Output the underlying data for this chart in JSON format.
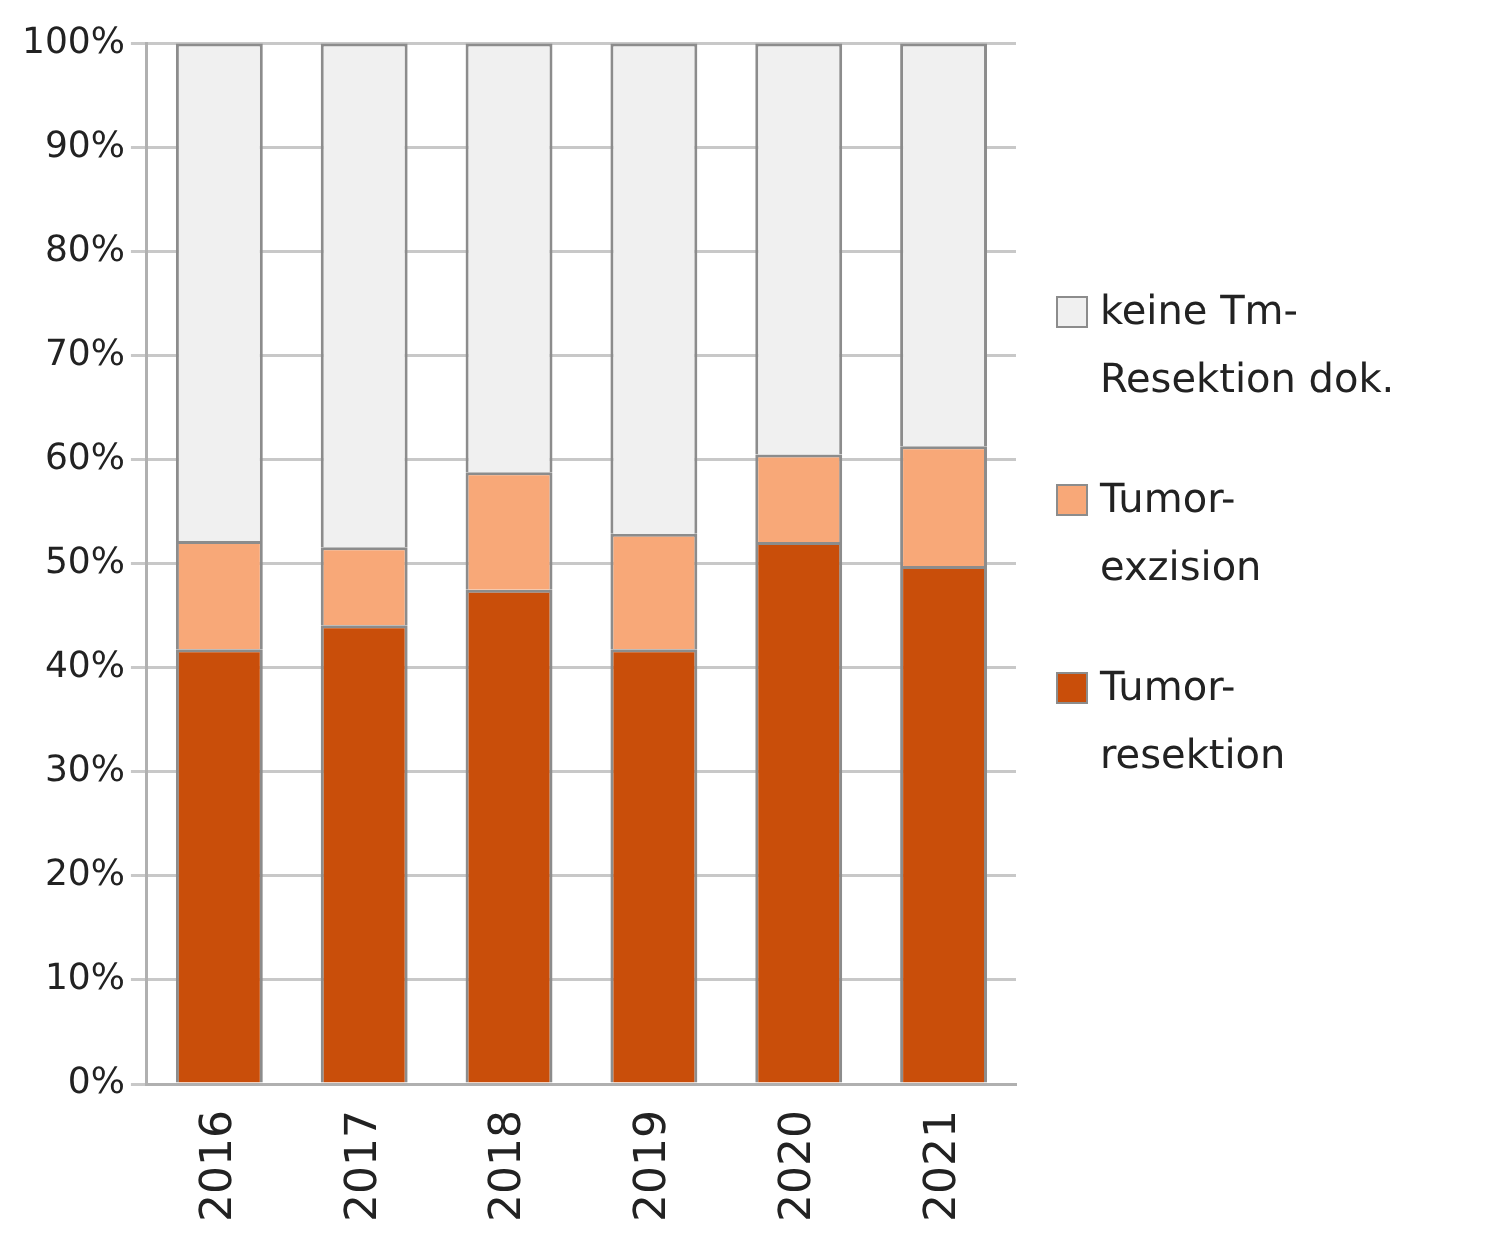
{
  "chart_data": {
    "type": "bar",
    "stacked": true,
    "categories": [
      "2016",
      "2017",
      "2018",
      "2019",
      "2020",
      "2021"
    ],
    "series": [
      {
        "name": "Tumor-resektion",
        "color": "#c94e0a",
        "values": [
          41.8,
          44.1,
          47.5,
          41.8,
          52.1,
          49.8
        ]
      },
      {
        "name": "Tumor-exzision",
        "color": "#f8a878",
        "values": [
          10.4,
          7.5,
          11.3,
          11.1,
          8.4,
          11.5
        ]
      },
      {
        "name": "keine Tm-Resektion dok.",
        "color": "#f0f0f0",
        "values": [
          47.8,
          48.4,
          41.2,
          47.1,
          39.5,
          38.7
        ]
      }
    ],
    "ylim": [
      0,
      100
    ],
    "yticks": [
      {
        "value": 0,
        "label": "0%"
      },
      {
        "value": 10,
        "label": "10%"
      },
      {
        "value": 20,
        "label": "20%"
      },
      {
        "value": 30,
        "label": "30%"
      },
      {
        "value": 40,
        "label": "40%"
      },
      {
        "value": 50,
        "label": "50%"
      },
      {
        "value": 60,
        "label": "60%"
      },
      {
        "value": 70,
        "label": "70%"
      },
      {
        "value": 80,
        "label": "80%"
      },
      {
        "value": 90,
        "label": "90%"
      },
      {
        "value": 100,
        "label": "100%"
      }
    ],
    "grid": "y",
    "legend": "right"
  }
}
